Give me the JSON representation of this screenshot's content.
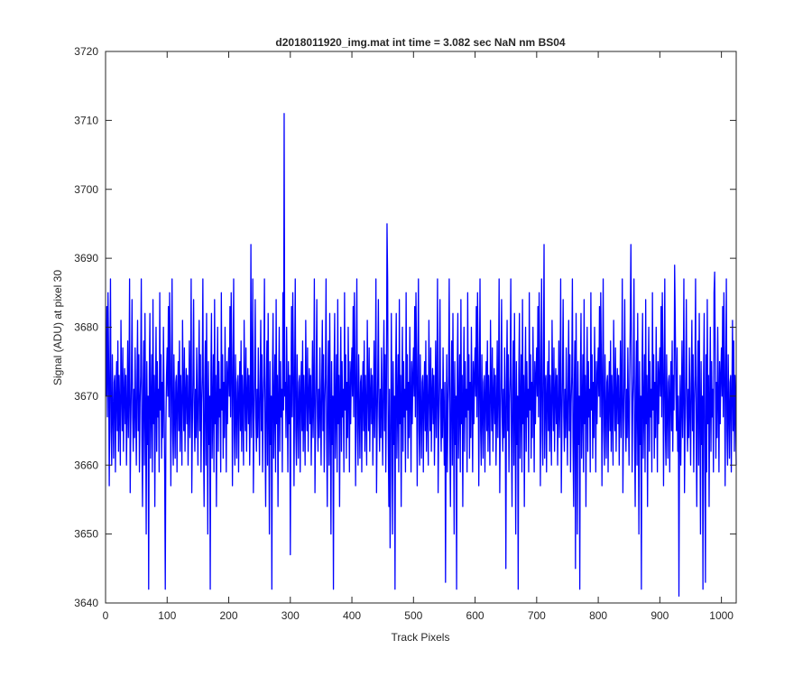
{
  "chart_data": {
    "type": "line",
    "title": "d2018011920_img.mat int time = 3.082 sec  NaN nm BS04",
    "xlabel": "Track Pixels",
    "ylabel": "Signal (ADU) at pixel 30",
    "xlim": [
      0,
      1024
    ],
    "ylim": [
      3640,
      3720
    ],
    "xticks": [
      0,
      100,
      200,
      300,
      400,
      500,
      600,
      700,
      800,
      900,
      1000
    ],
    "yticks": [
      3640,
      3650,
      3660,
      3670,
      3680,
      3690,
      3700,
      3710,
      3720
    ],
    "grid": false,
    "legend": "none",
    "series": [
      {
        "color": "#0000ff",
        "points_note": "",
        "x_start": 1,
        "x_step": 1,
        "values": [
          3670,
          3683,
          3667,
          3685,
          3675,
          3657,
          3672,
          3687,
          3665,
          3660,
          3676,
          3668,
          3661,
          3672,
          3673,
          3659,
          3670,
          3675,
          3665,
          3678,
          3662,
          3673,
          3668,
          3660,
          3681,
          3671,
          3665,
          3677,
          3662,
          3670,
          3674,
          3666,
          3673,
          3660,
          3668,
          3678,
          3664,
          3671,
          3687,
          3656,
          3666,
          3673,
          3684,
          3667,
          3662,
          3671,
          3664,
          3677,
          3668,
          3660,
          3672,
          3681,
          3665,
          3676,
          3659,
          3669,
          3673,
          3687,
          3664,
          3654,
          3671,
          3678,
          3660,
          3682,
          3668,
          3650,
          3675,
          3663,
          3670,
          3642,
          3673,
          3682,
          3661,
          3668,
          3676,
          3659,
          3684,
          3666,
          3673,
          3654,
          3670,
          3680,
          3662,
          3675,
          3667,
          3671,
          3659,
          3685,
          3668,
          3676,
          3661,
          3672,
          3664,
          3680,
          3670,
          3659,
          3675,
          3666,
          3673,
          3677
        ],
        "repeat_fill": true
      }
    ]
  }
}
